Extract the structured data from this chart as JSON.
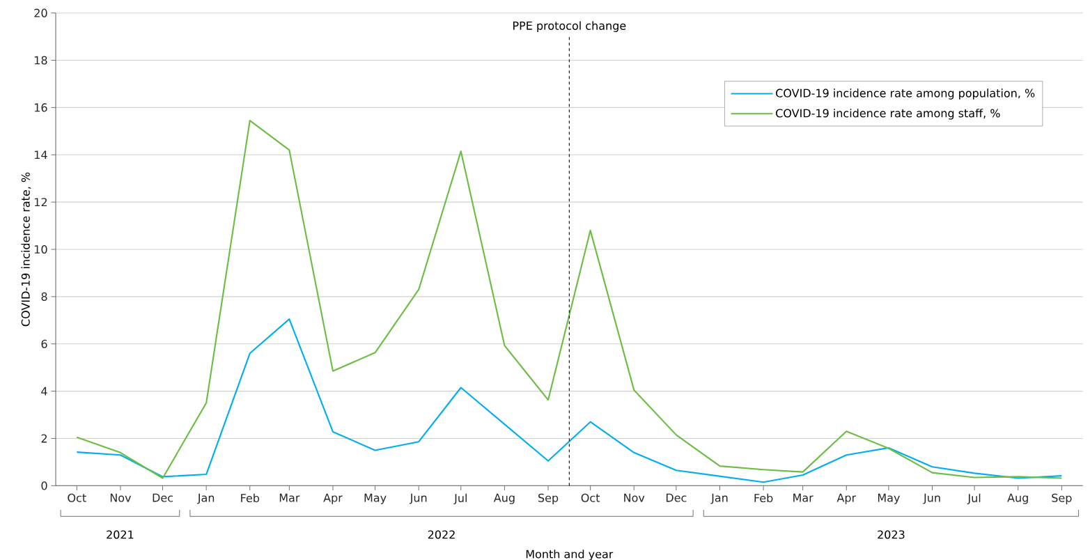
{
  "chart_data": {
    "type": "line",
    "xlabel": "Month and year",
    "ylabel": "COVID-19 incidence rate, %",
    "x": [
      "2021-10",
      "2021-11",
      "2021-12",
      "2022-01",
      "2022-02",
      "2022-03",
      "2022-04",
      "2022-05",
      "2022-06",
      "2022-07",
      "2022-08",
      "2022-09",
      "2022-10",
      "2022-11",
      "2022-12",
      "2023-01",
      "2023-02",
      "2023-03",
      "2023-04",
      "2023-05",
      "2023-06",
      "2023-07",
      "2023-08",
      "2023-09"
    ],
    "series": [
      {
        "name": "COVID-19 incidence rate among population, %",
        "color": "#00aeef",
        "values": [
          1.42,
          1.3,
          0.38,
          0.48,
          5.6,
          7.05,
          2.28,
          1.5,
          1.86,
          4.15,
          2.6,
          1.05,
          2.7,
          1.4,
          0.65,
          0.4,
          0.15,
          0.45,
          1.3,
          1.6,
          0.8,
          0.53,
          0.32,
          0.42
        ]
      },
      {
        "name": "COVID-19 incidence rate among staff, %",
        "color": "#6cbd45",
        "values": [
          2.05,
          1.4,
          0.32,
          3.5,
          15.45,
          14.2,
          4.85,
          5.63,
          8.3,
          14.15,
          5.93,
          3.63,
          10.8,
          4.05,
          2.15,
          0.83,
          0.68,
          0.58,
          2.3,
          1.58,
          0.55,
          0.35,
          0.38,
          0.32
        ]
      }
    ],
    "xlim": [
      "2021-09-16",
      "2023-09-16"
    ],
    "xticks": [
      {
        "value": "2021-10",
        "label": "Oct"
      },
      {
        "value": "2021-11",
        "label": "Nov"
      },
      {
        "value": "2021-12",
        "label": "Dec"
      },
      {
        "value": "2022-01",
        "label": "Jan"
      },
      {
        "value": "2022-02",
        "label": "Feb"
      },
      {
        "value": "2022-03",
        "label": "Mar"
      },
      {
        "value": "2022-04",
        "label": "Apr"
      },
      {
        "value": "2022-05",
        "label": "May"
      },
      {
        "value": "2022-06",
        "label": "Jun"
      },
      {
        "value": "2022-07",
        "label": "Jul"
      },
      {
        "value": "2022-08",
        "label": "Aug"
      },
      {
        "value": "2022-09",
        "label": "Sep"
      },
      {
        "value": "2022-10",
        "label": "Oct"
      },
      {
        "value": "2022-11",
        "label": "Nov"
      },
      {
        "value": "2022-12",
        "label": "Dec"
      },
      {
        "value": "2023-01",
        "label": "Jan"
      },
      {
        "value": "2023-02",
        "label": "Feb"
      },
      {
        "value": "2023-03",
        "label": "Mar"
      },
      {
        "value": "2023-04",
        "label": "Apr"
      },
      {
        "value": "2023-05",
        "label": "May"
      },
      {
        "value": "2023-06",
        "label": "Jun"
      },
      {
        "value": "2023-07",
        "label": "Jul"
      },
      {
        "value": "2023-08",
        "label": "Aug"
      },
      {
        "value": "2023-09",
        "label": "Sep"
      }
    ],
    "ylim": [
      0,
      20
    ],
    "yticks": [
      0,
      2,
      4,
      6,
      8,
      10,
      12,
      14,
      16,
      18,
      20
    ],
    "grid": "y",
    "legend": "top right",
    "ref_lines": [
      {
        "axis": "x",
        "value": "2022-09-16",
        "label": "PPE protocol change",
        "color": "#000000",
        "line_style": "dashed"
      }
    ],
    "annotations": [
      "2021",
      "2022",
      "2023"
    ]
  }
}
